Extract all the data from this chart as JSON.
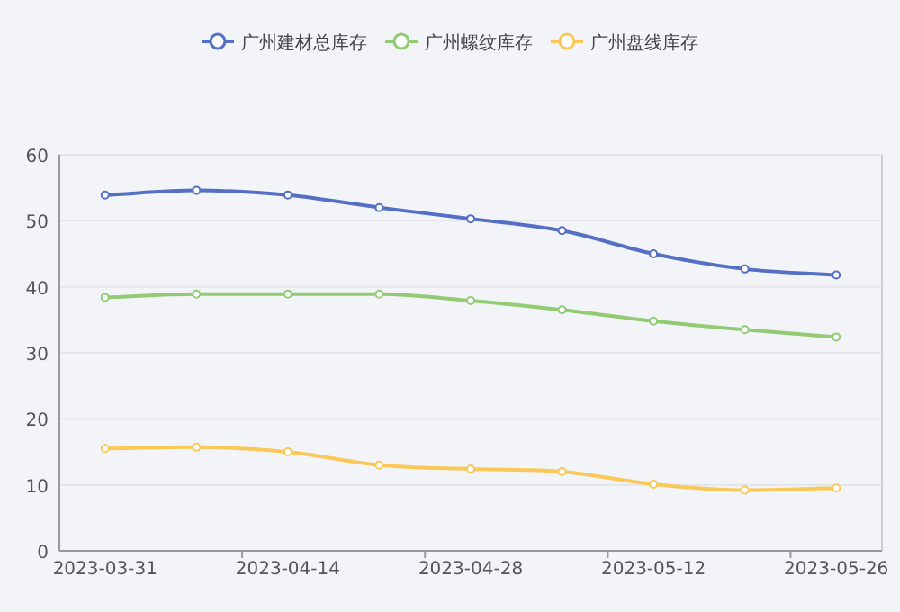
{
  "chart_data": {
    "type": "line",
    "categories": [
      "2023-03-31",
      null,
      "2023-04-14",
      null,
      "2023-04-28",
      null,
      "2023-05-12",
      null,
      "2023-05-26"
    ],
    "series": [
      {
        "name": "广州建材总库存",
        "color": "#5470c6",
        "values": [
          53.9,
          54.6,
          53.9,
          52.0,
          50.3,
          48.5,
          45.0,
          42.7,
          41.8
        ]
      },
      {
        "name": "广州螺纹库存",
        "color": "#91cc75",
        "values": [
          38.4,
          38.9,
          38.9,
          38.9,
          37.9,
          36.5,
          34.8,
          33.5,
          32.4
        ]
      },
      {
        "name": "广州盘线库存",
        "color": "#fac858",
        "values": [
          15.5,
          15.7,
          15.0,
          13.0,
          12.4,
          12.0,
          10.1,
          9.2,
          9.5
        ]
      }
    ],
    "ylim": [
      0,
      60
    ],
    "yticks": [
      0,
      10,
      20,
      30,
      40,
      50,
      60
    ],
    "grid": "y",
    "legend": "top",
    "marker": "circle",
    "line_style": "solid"
  }
}
